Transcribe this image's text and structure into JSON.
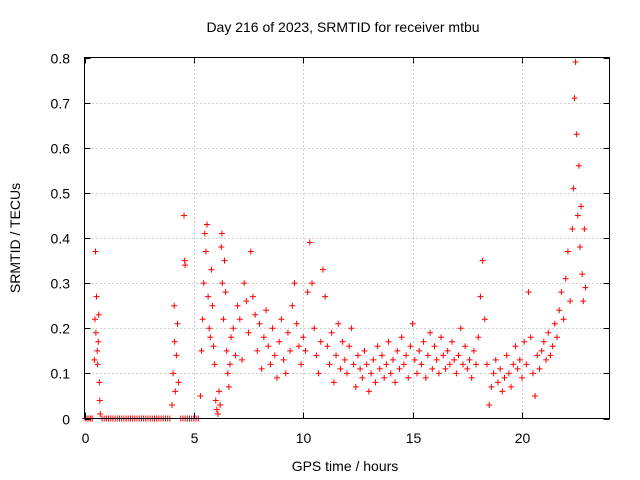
{
  "chart_data": {
    "type": "scatter",
    "title": "Day 216 of 2023, SRMTID for receiver mtbu",
    "xlabel": "GPS time / hours",
    "ylabel": "SRMTID / TECUs",
    "xlim": [
      0,
      24
    ],
    "ylim": [
      0,
      0.8
    ],
    "grid": true,
    "marker": "plus",
    "color": "#ff0000",
    "x_ticks": [
      0,
      5,
      10,
      15,
      20
    ],
    "x_tick_labels": [
      "0",
      "5",
      "10",
      "15",
      "20"
    ],
    "y_ticks": [
      0,
      0.1,
      0.2,
      0.3,
      0.4,
      0.5,
      0.6,
      0.7,
      0.8
    ],
    "y_tick_labels": [
      "0",
      "0.1",
      "0.2",
      "0.3",
      "0.4",
      "0.5",
      "0.6",
      "0.7",
      "0.8"
    ],
    "series": [
      {
        "name": "SRMTID",
        "points": [
          [
            0.05,
            0
          ],
          [
            0.12,
            0
          ],
          [
            0.2,
            0
          ],
          [
            0.28,
            0
          ],
          [
            0.35,
            0
          ],
          [
            0.45,
            0.13
          ],
          [
            0.48,
            0.22
          ],
          [
            0.5,
            0.37
          ],
          [
            0.52,
            0.19
          ],
          [
            0.55,
            0.27
          ],
          [
            0.58,
            0.15
          ],
          [
            0.6,
            0.12
          ],
          [
            0.63,
            0.17
          ],
          [
            0.65,
            0.23
          ],
          [
            0.68,
            0.08
          ],
          [
            0.7,
            0.04
          ],
          [
            0.72,
            0.01
          ],
          [
            0.8,
            0
          ],
          [
            0.9,
            0
          ],
          [
            1.0,
            0
          ],
          [
            1.1,
            0
          ],
          [
            1.2,
            0
          ],
          [
            1.3,
            0
          ],
          [
            1.4,
            0
          ],
          [
            1.5,
            0
          ],
          [
            1.6,
            0
          ],
          [
            1.7,
            0
          ],
          [
            1.8,
            0
          ],
          [
            1.9,
            0
          ],
          [
            2.0,
            0
          ],
          [
            2.1,
            0
          ],
          [
            2.2,
            0
          ],
          [
            2.3,
            0
          ],
          [
            2.4,
            0
          ],
          [
            2.5,
            0
          ],
          [
            2.6,
            0
          ],
          [
            2.7,
            0
          ],
          [
            2.8,
            0
          ],
          [
            2.9,
            0
          ],
          [
            3.0,
            0
          ],
          [
            3.1,
            0
          ],
          [
            3.2,
            0
          ],
          [
            3.3,
            0
          ],
          [
            3.4,
            0
          ],
          [
            3.5,
            0
          ],
          [
            3.6,
            0
          ],
          [
            3.7,
            0
          ],
          [
            3.8,
            0
          ],
          [
            3.9,
            0
          ],
          [
            4.0,
            0.03
          ],
          [
            4.05,
            0.1
          ],
          [
            4.1,
            0.25
          ],
          [
            4.12,
            0.17
          ],
          [
            4.15,
            0.06
          ],
          [
            4.2,
            0.14
          ],
          [
            4.25,
            0.21
          ],
          [
            4.3,
            0.08
          ],
          [
            4.4,
            0
          ],
          [
            4.5,
            0
          ],
          [
            4.6,
            0
          ],
          [
            4.7,
            0
          ],
          [
            4.8,
            0
          ],
          [
            4.9,
            0
          ],
          [
            5.0,
            0
          ],
          [
            5.1,
            0
          ],
          [
            5.2,
            0
          ],
          [
            4.55,
            0.45
          ],
          [
            4.58,
            0.35
          ],
          [
            4.6,
            0.34
          ],
          [
            5.3,
            0.05
          ],
          [
            5.35,
            0.15
          ],
          [
            5.4,
            0.22
          ],
          [
            5.45,
            0.3
          ],
          [
            5.5,
            0.41
          ],
          [
            5.55,
            0.37
          ],
          [
            5.6,
            0.43
          ],
          [
            5.65,
            0.27
          ],
          [
            5.7,
            0.2
          ],
          [
            5.75,
            0.18
          ],
          [
            5.8,
            0.33
          ],
          [
            5.85,
            0.25
          ],
          [
            5.9,
            0.16
          ],
          [
            5.95,
            0.12
          ],
          [
            6.0,
            0.04
          ],
          [
            6.05,
            0.02
          ],
          [
            6.1,
            0.01
          ],
          [
            6.15,
            0.06
          ],
          [
            6.2,
            0.03
          ],
          [
            6.25,
            0.38
          ],
          [
            6.28,
            0.41
          ],
          [
            6.3,
            0.3
          ],
          [
            6.35,
            0.22
          ],
          [
            6.4,
            0.35
          ],
          [
            6.45,
            0.28
          ],
          [
            6.5,
            0.15
          ],
          [
            6.55,
            0.1
          ],
          [
            6.6,
            0.07
          ],
          [
            6.65,
            0.12
          ],
          [
            6.7,
            0.18
          ],
          [
            6.8,
            0.2
          ],
          [
            6.9,
            0.14
          ],
          [
            7.0,
            0.25
          ],
          [
            7.1,
            0.22
          ],
          [
            7.2,
            0.13
          ],
          [
            7.3,
            0.3
          ],
          [
            7.4,
            0.26
          ],
          [
            7.5,
            0.19
          ],
          [
            7.6,
            0.37
          ],
          [
            7.7,
            0.27
          ],
          [
            7.8,
            0.23
          ],
          [
            7.9,
            0.15
          ],
          [
            8.0,
            0.21
          ],
          [
            8.1,
            0.11
          ],
          [
            8.2,
            0.18
          ],
          [
            8.3,
            0.24
          ],
          [
            8.4,
            0.16
          ],
          [
            8.5,
            0.12
          ],
          [
            8.6,
            0.2
          ],
          [
            8.7,
            0.14
          ],
          [
            8.8,
            0.09
          ],
          [
            8.9,
            0.17
          ],
          [
            9.0,
            0.22
          ],
          [
            9.1,
            0.13
          ],
          [
            9.2,
            0.1
          ],
          [
            9.3,
            0.19
          ],
          [
            9.4,
            0.15
          ],
          [
            9.5,
            0.25
          ],
          [
            9.6,
            0.3
          ],
          [
            9.7,
            0.21
          ],
          [
            9.8,
            0.16
          ],
          [
            9.9,
            0.12
          ],
          [
            10.0,
            0.18
          ],
          [
            10.1,
            0.15
          ],
          [
            10.2,
            0.28
          ],
          [
            10.3,
            0.39
          ],
          [
            10.4,
            0.3
          ],
          [
            10.5,
            0.2
          ],
          [
            10.6,
            0.14
          ],
          [
            10.7,
            0.1
          ],
          [
            10.8,
            0.17
          ],
          [
            10.9,
            0.33
          ],
          [
            11.0,
            0.27
          ],
          [
            11.1,
            0.16
          ],
          [
            11.2,
            0.12
          ],
          [
            11.3,
            0.19
          ],
          [
            11.4,
            0.08
          ],
          [
            11.5,
            0.14
          ],
          [
            11.6,
            0.21
          ],
          [
            11.7,
            0.11
          ],
          [
            11.8,
            0.17
          ],
          [
            11.9,
            0.13
          ],
          [
            12.0,
            0.1
          ],
          [
            12.1,
            0.16
          ],
          [
            12.2,
            0.2
          ],
          [
            12.3,
            0.12
          ],
          [
            12.4,
            0.07
          ],
          [
            12.5,
            0.14
          ],
          [
            12.6,
            0.11
          ],
          [
            12.7,
            0.09
          ],
          [
            12.8,
            0.15
          ],
          [
            12.9,
            0.12
          ],
          [
            13.0,
            0.06
          ],
          [
            13.1,
            0.1
          ],
          [
            13.2,
            0.13
          ],
          [
            13.3,
            0.08
          ],
          [
            13.4,
            0.16
          ],
          [
            13.5,
            0.11
          ],
          [
            13.6,
            0.14
          ],
          [
            13.7,
            0.09
          ],
          [
            13.8,
            0.12
          ],
          [
            13.9,
            0.17
          ],
          [
            14.0,
            0.1
          ],
          [
            14.1,
            0.13
          ],
          [
            14.2,
            0.08
          ],
          [
            14.3,
            0.15
          ],
          [
            14.4,
            0.11
          ],
          [
            14.5,
            0.18
          ],
          [
            14.6,
            0.12
          ],
          [
            14.7,
            0.14
          ],
          [
            14.8,
            0.09
          ],
          [
            14.9,
            0.16
          ],
          [
            15.0,
            0.21
          ],
          [
            15.1,
            0.13
          ],
          [
            15.2,
            0.1
          ],
          [
            15.3,
            0.15
          ],
          [
            15.4,
            0.12
          ],
          [
            15.5,
            0.17
          ],
          [
            15.6,
            0.09
          ],
          [
            15.7,
            0.14
          ],
          [
            15.8,
            0.19
          ],
          [
            15.9,
            0.11
          ],
          [
            16.0,
            0.16
          ],
          [
            16.1,
            0.13
          ],
          [
            16.2,
            0.1
          ],
          [
            16.3,
            0.18
          ],
          [
            16.4,
            0.14
          ],
          [
            16.5,
            0.11
          ],
          [
            16.6,
            0.15
          ],
          [
            16.7,
            0.12
          ],
          [
            16.8,
            0.17
          ],
          [
            16.9,
            0.13
          ],
          [
            17.0,
            0.1
          ],
          [
            17.1,
            0.14
          ],
          [
            17.2,
            0.2
          ],
          [
            17.3,
            0.12
          ],
          [
            17.4,
            0.16
          ],
          [
            17.5,
            0.11
          ],
          [
            17.6,
            0.13
          ],
          [
            17.7,
            0.09
          ],
          [
            17.8,
            0.15
          ],
          [
            17.9,
            0.12
          ],
          [
            18.0,
            0.18
          ],
          [
            18.1,
            0.27
          ],
          [
            18.2,
            0.35
          ],
          [
            18.3,
            0.22
          ],
          [
            18.4,
            0.12
          ],
          [
            18.5,
            0.03
          ],
          [
            18.6,
            0.07
          ],
          [
            18.7,
            0.1
          ],
          [
            18.8,
            0.13
          ],
          [
            18.9,
            0.08
          ],
          [
            19.0,
            0.11
          ],
          [
            19.1,
            0.06
          ],
          [
            19.2,
            0.09
          ],
          [
            19.3,
            0.14
          ],
          [
            19.4,
            0.1
          ],
          [
            19.5,
            0.07
          ],
          [
            19.6,
            0.12
          ],
          [
            19.7,
            0.16
          ],
          [
            19.8,
            0.11
          ],
          [
            19.9,
            0.13
          ],
          [
            20.0,
            0.09
          ],
          [
            20.1,
            0.17
          ],
          [
            20.2,
            0.12
          ],
          [
            20.3,
            0.28
          ],
          [
            20.4,
            0.18
          ],
          [
            20.5,
            0.1
          ],
          [
            20.6,
            0.05
          ],
          [
            20.7,
            0.14
          ],
          [
            20.8,
            0.11
          ],
          [
            20.9,
            0.15
          ],
          [
            21.0,
            0.17
          ],
          [
            21.1,
            0.13
          ],
          [
            21.2,
            0.19
          ],
          [
            21.3,
            0.14
          ],
          [
            21.4,
            0.16
          ],
          [
            21.5,
            0.21
          ],
          [
            21.6,
            0.18
          ],
          [
            21.7,
            0.24
          ],
          [
            21.8,
            0.28
          ],
          [
            21.9,
            0.22
          ],
          [
            22.0,
            0.31
          ],
          [
            22.1,
            0.37
          ],
          [
            22.2,
            0.26
          ],
          [
            22.3,
            0.42
          ],
          [
            22.35,
            0.51
          ],
          [
            22.4,
            0.71
          ],
          [
            22.45,
            0.79
          ],
          [
            22.5,
            0.63
          ],
          [
            22.55,
            0.45
          ],
          [
            22.6,
            0.56
          ],
          [
            22.65,
            0.38
          ],
          [
            22.7,
            0.47
          ],
          [
            22.75,
            0.32
          ],
          [
            22.8,
            0.26
          ],
          [
            22.85,
            0.42
          ],
          [
            22.9,
            0.29
          ]
        ]
      }
    ]
  }
}
